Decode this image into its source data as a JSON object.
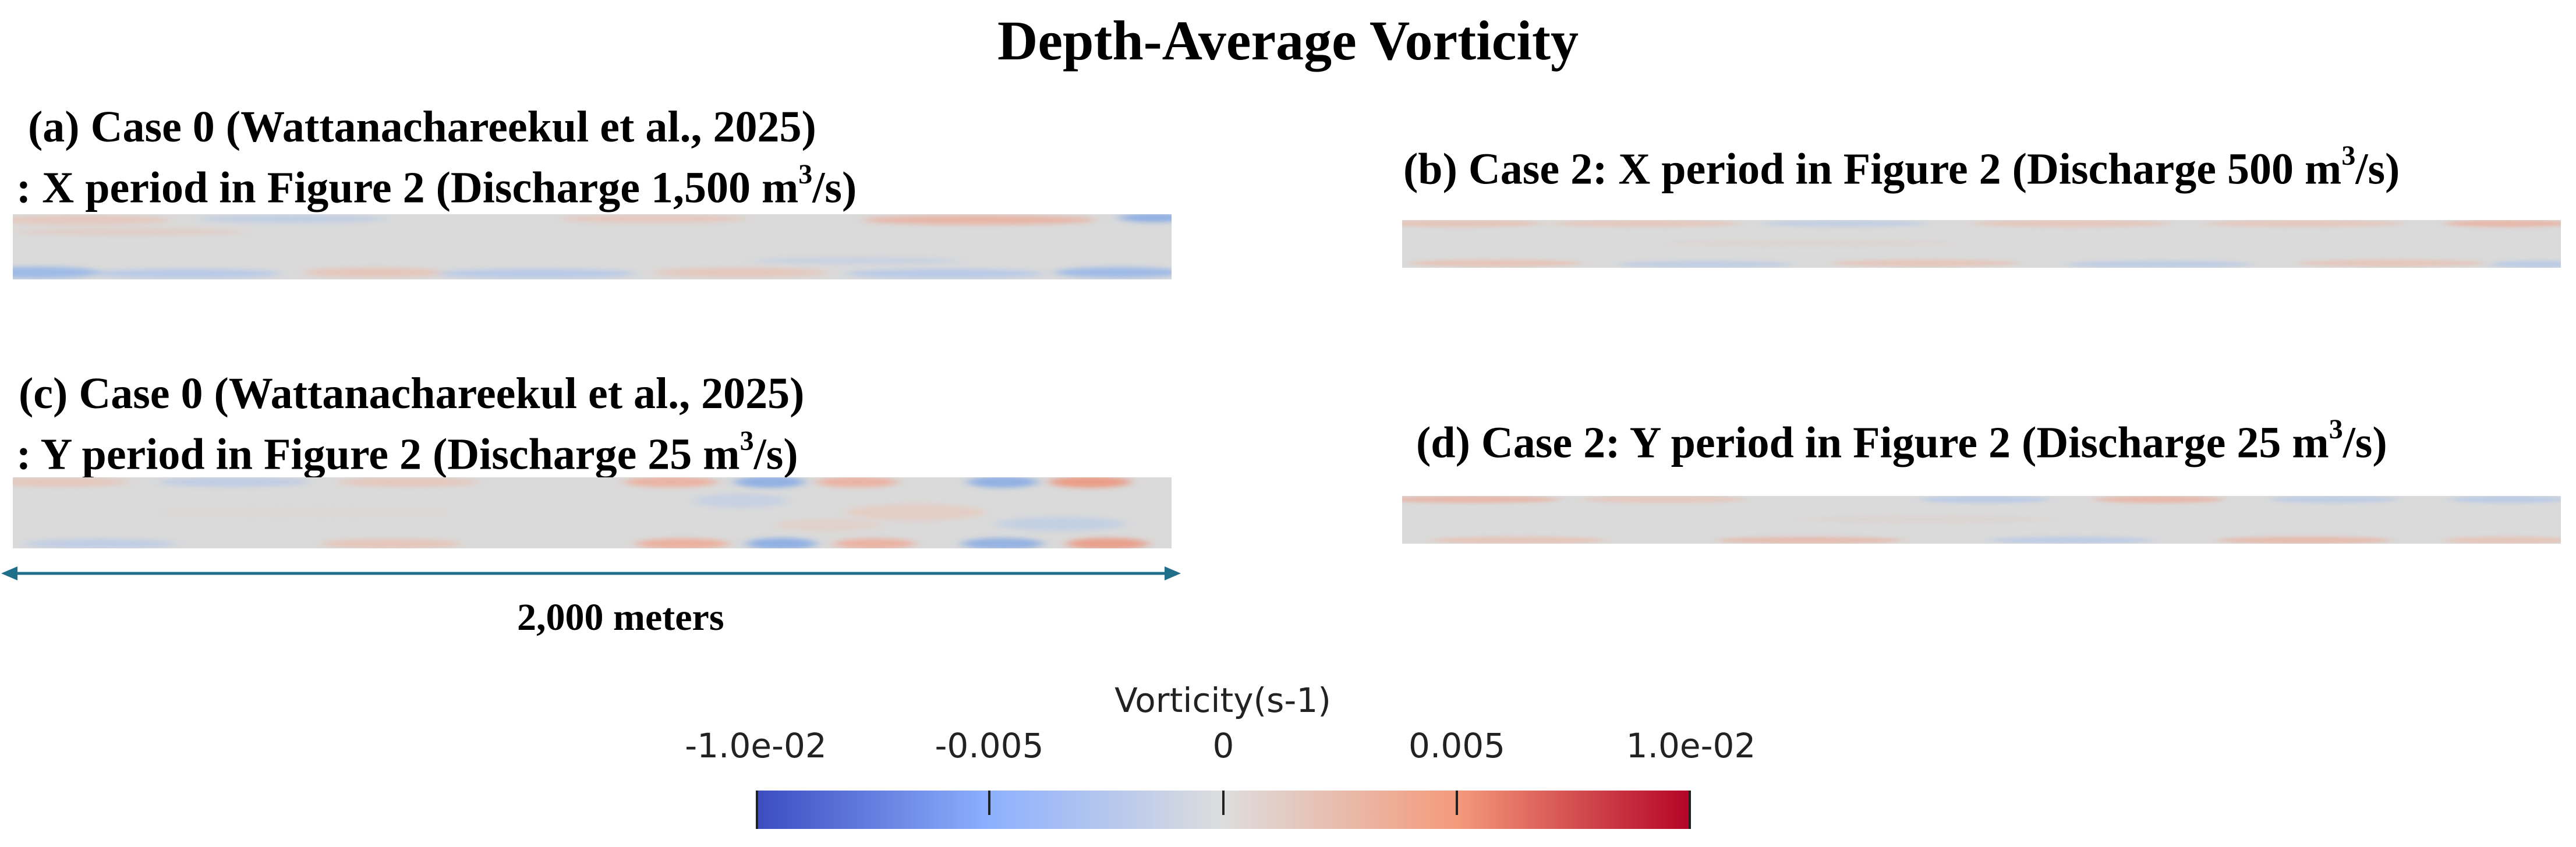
{
  "figure": {
    "title": "Depth-Average Vorticity"
  },
  "panels": {
    "a": {
      "line1": "(a)  Case 0 (Wattanachareekul et al., 2025)",
      "line2_prefix": ": X period in Figure 2 (Discharge 1,500 m",
      "sup": "3",
      "line2_suffix": "/s)"
    },
    "b": {
      "line1_prefix": "(b) Case 2: X period in Figure 2 (Discharge 500 m",
      "sup": "3",
      "line1_suffix": "/s)"
    },
    "c": {
      "line1": "(c)   Case 0 (Wattanachareekul et al., 2025)",
      "line2_prefix": ": Y period in Figure 2 (Discharge 25 m",
      "sup": "3",
      "line2_suffix": "/s)"
    },
    "d": {
      "line1_prefix": "(d) Case 2: Y period in Figure 2 (Discharge 25 m",
      "sup": "3",
      "line1_suffix": "/s)"
    }
  },
  "scale_bar": {
    "label": "2,000 meters"
  },
  "colorbar": {
    "title": "Vorticity(s-1)",
    "ticks": [
      "-1.0e-02",
      "-0.005",
      "0",
      "0.005",
      "1.0e-02"
    ],
    "colors": {
      "min": "#3b4cc0",
      "mid": "#dddddd",
      "max": "#b40426"
    }
  },
  "colors": {
    "scale_arrow": "#1f6f8b",
    "field_base": "#dadada"
  }
}
